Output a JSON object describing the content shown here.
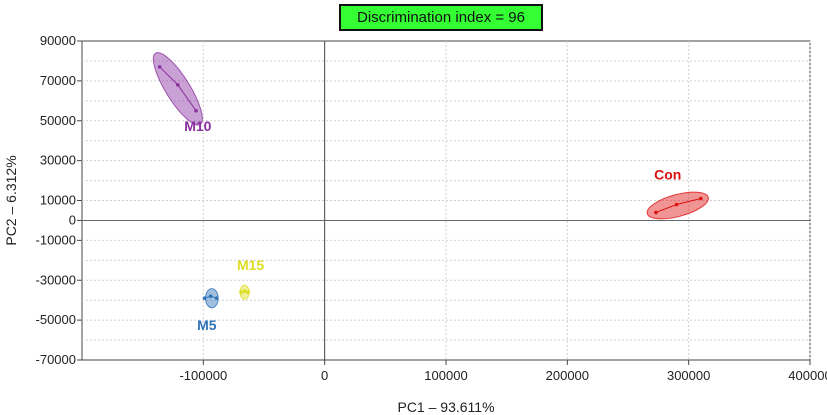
{
  "chart_data": {
    "type": "scatter",
    "badge": "Discrimination index = 96",
    "xlabel": "PC1 – 93.611%",
    "ylabel": "PC2 – 6.312%",
    "xlim": [
      -200000,
      400000
    ],
    "ylim": [
      -70000,
      90000
    ],
    "xticks": [
      -100000,
      0,
      100000,
      200000,
      300000,
      400000
    ],
    "xtick_labels": [
      "-100000",
      "0",
      "100000",
      "200000",
      "300000",
      "400000"
    ],
    "yticks": [
      90000,
      70000,
      50000,
      30000,
      10000,
      0,
      -10000,
      -30000,
      -50000,
      -70000
    ],
    "ytick_labels": [
      "90000",
      "70000",
      "50000",
      "30000",
      "10000",
      "0",
      "-10000",
      "-30000",
      "-50000",
      "-70000"
    ],
    "grid": true,
    "groups": [
      {
        "name": "M10",
        "color": "#8a2f9f",
        "points": [
          [
            -136000,
            77000
          ],
          [
            -121000,
            68000
          ],
          [
            -106000,
            55000
          ]
        ],
        "ellipse": {
          "cx": -121000,
          "cy": 66000,
          "rx": 28000,
          "ry": 8500,
          "angle_deg": 58
        }
      },
      {
        "name": "Con",
        "color": "#dd1111",
        "points": [
          [
            273000,
            4000
          ],
          [
            290000,
            8000
          ],
          [
            310000,
            11000
          ]
        ],
        "ellipse": {
          "cx": 291000,
          "cy": 7500,
          "rx": 26000,
          "ry": 5500,
          "angle_deg": -15
        }
      },
      {
        "name": "M5",
        "color": "#2f73b9",
        "points": [
          [
            -99000,
            -39000
          ],
          [
            -94000,
            -38000
          ],
          [
            -89000,
            -39000
          ]
        ],
        "ellipse": {
          "cx": -93000,
          "cy": -39000,
          "rx": 5200,
          "ry": 4800,
          "angle_deg": 0
        }
      },
      {
        "name": "M15",
        "color": "#dddd22",
        "points": [
          [
            -69000,
            -36000
          ],
          [
            -66000,
            -35500
          ],
          [
            -63000,
            -36000
          ]
        ],
        "ellipse": {
          "cx": -66000,
          "cy": -36000,
          "rx": 3800,
          "ry": 3500,
          "angle_deg": 0
        }
      }
    ]
  }
}
